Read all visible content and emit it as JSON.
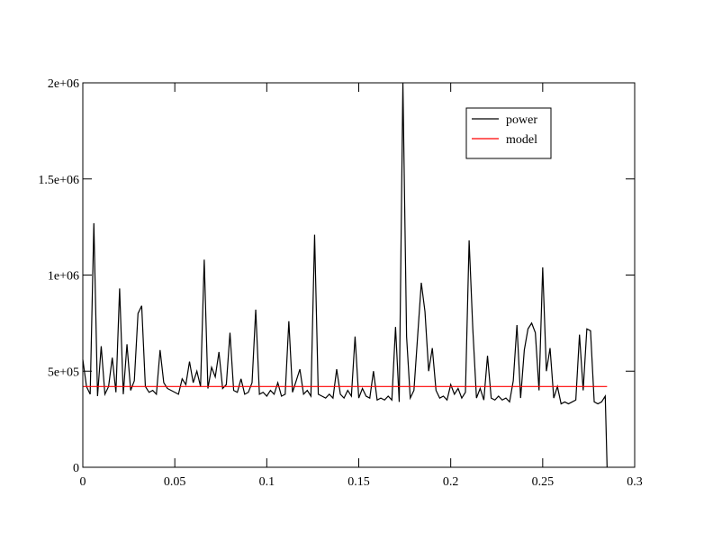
{
  "chart_data": {
    "type": "line",
    "xlim": [
      0,
      0.3
    ],
    "xticks": [
      0,
      0.05,
      0.1,
      0.15,
      0.2,
      0.25,
      0.3
    ],
    "ylim": [
      0,
      2000000
    ],
    "yticks": [
      0,
      {
        "value": 500000,
        "label": "5e+05"
      },
      {
        "value": 1000000,
        "label": "1e+06"
      },
      {
        "value": 1500000,
        "label": "1.5e+06"
      },
      {
        "value": 2000000,
        "label": "2e+06"
      }
    ],
    "legend": "upper right",
    "series": [
      {
        "name": "power",
        "color": "#000000",
        "x": [
          0,
          0.002,
          0.004,
          0.006,
          0.008,
          0.01,
          0.012,
          0.014,
          0.016,
          0.018,
          0.02,
          0.022,
          0.024,
          0.026,
          0.028,
          0.03,
          0.032,
          0.034,
          0.036,
          0.038,
          0.04,
          0.042,
          0.044,
          0.046,
          0.048,
          0.05,
          0.052,
          0.054,
          0.056,
          0.058,
          0.06,
          0.062,
          0.064,
          0.066,
          0.068,
          0.07,
          0.072,
          0.074,
          0.076,
          0.078,
          0.08,
          0.082,
          0.084,
          0.086,
          0.088,
          0.09,
          0.092,
          0.094,
          0.096,
          0.098,
          0.1,
          0.102,
          0.104,
          0.106,
          0.108,
          0.11,
          0.112,
          0.114,
          0.116,
          0.118,
          0.12,
          0.122,
          0.124,
          0.126,
          0.128,
          0.13,
          0.132,
          0.134,
          0.136,
          0.138,
          0.14,
          0.142,
          0.144,
          0.146,
          0.148,
          0.15,
          0.152,
          0.154,
          0.156,
          0.158,
          0.16,
          0.162,
          0.164,
          0.166,
          0.168,
          0.17,
          0.172,
          0.174,
          0.176,
          0.178,
          0.18,
          0.182,
          0.184,
          0.186,
          0.188,
          0.19,
          0.192,
          0.194,
          0.196,
          0.198,
          0.2,
          0.202,
          0.204,
          0.206,
          0.208,
          0.21,
          0.212,
          0.214,
          0.216,
          0.218,
          0.22,
          0.222,
          0.224,
          0.226,
          0.228,
          0.23,
          0.232,
          0.234,
          0.236,
          0.238,
          0.24,
          0.242,
          0.244,
          0.246,
          0.248,
          0.25,
          0.252,
          0.254,
          0.256,
          0.258,
          0.26,
          0.262,
          0.264,
          0.266,
          0.268,
          0.27,
          0.272,
          0.274,
          0.276,
          0.278,
          0.28,
          0.282,
          0.284,
          0.285
        ],
        "values": [
          560000,
          420000,
          380000,
          1270000,
          370000,
          630000,
          380000,
          420000,
          570000,
          390000,
          930000,
          380000,
          640000,
          400000,
          450000,
          800000,
          840000,
          420000,
          390000,
          400000,
          380000,
          610000,
          440000,
          410000,
          400000,
          390000,
          380000,
          460000,
          430000,
          550000,
          440000,
          500000,
          420000,
          1080000,
          410000,
          520000,
          470000,
          600000,
          410000,
          430000,
          700000,
          400000,
          390000,
          460000,
          380000,
          390000,
          440000,
          820000,
          380000,
          390000,
          370000,
          400000,
          380000,
          440000,
          370000,
          380000,
          760000,
          390000,
          450000,
          510000,
          380000,
          400000,
          370000,
          1210000,
          380000,
          370000,
          360000,
          380000,
          360000,
          510000,
          380000,
          360000,
          400000,
          370000,
          680000,
          360000,
          410000,
          370000,
          360000,
          500000,
          350000,
          360000,
          350000,
          370000,
          350000,
          730000,
          340000,
          2000000,
          680000,
          360000,
          400000,
          680000,
          960000,
          810000,
          500000,
          620000,
          400000,
          360000,
          370000,
          350000,
          430000,
          380000,
          410000,
          360000,
          390000,
          1180000,
          720000,
          360000,
          410000,
          350000,
          580000,
          360000,
          350000,
          370000,
          350000,
          360000,
          340000,
          450000,
          740000,
          360000,
          610000,
          720000,
          750000,
          700000,
          400000,
          1040000,
          500000,
          620000,
          360000,
          420000,
          330000,
          340000,
          330000,
          340000,
          350000,
          690000,
          400000,
          720000,
          710000,
          340000,
          330000,
          340000,
          370000,
          0
        ]
      },
      {
        "name": "model",
        "color": "#ff0000",
        "x": [
          0,
          0.285
        ],
        "values": [
          420000,
          420000
        ]
      }
    ]
  }
}
